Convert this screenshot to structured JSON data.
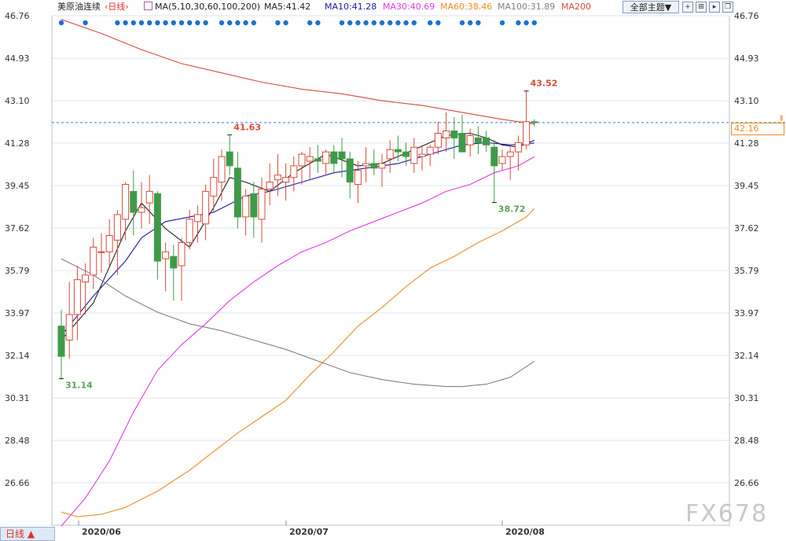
{
  "header": {
    "instrument": "美原油连续",
    "period": "‹日线›",
    "ma_icon": "ma-settings-icon",
    "ma_label": "MA(5,10,30,60,100,200)",
    "ma_values": [
      {
        "label": "MA5:41.42",
        "color": "#222222"
      },
      {
        "label": "MA10:41.28",
        "color": "#1a1aa8"
      },
      {
        "label": "MA30:40.69",
        "color": "#e43ae4"
      },
      {
        "label": "MA60:38.46",
        "color": "#f08a2a"
      },
      {
        "label": "MA100:31.89",
        "color": "#808080"
      },
      {
        "label": "MA200",
        "color": "#d84b3a"
      }
    ],
    "theme_button": "全部主题▼",
    "tool_icons": [
      "crosshair-icon",
      "zoom-in-icon",
      "play-icon",
      "restore-icon"
    ]
  },
  "bottom": {
    "period_tab": "日线 ▲",
    "watermark": "FX678"
  },
  "current_price": "42.16",
  "chart_data": {
    "type": "candlestick",
    "ylim": [
      24.83,
      46.76
    ],
    "y_ticks": [
      "46.76",
      "44.93",
      "43.10",
      "41.28",
      "39.45",
      "37.62",
      "35.79",
      "33.97",
      "32.14",
      "30.31",
      "28.48",
      "26.66"
    ],
    "x_labels": [
      "2020/06",
      "2020/07",
      "2020/08"
    ],
    "candles": [
      [
        33.4,
        34.1,
        31.1,
        32.1
      ],
      [
        32.8,
        35.3,
        32.0,
        33.9
      ],
      [
        33.9,
        36.0,
        32.8,
        35.4
      ],
      [
        35.3,
        36.1,
        33.9,
        35.6
      ],
      [
        35.6,
        37.2,
        35.0,
        36.8
      ],
      [
        36.6,
        37.4,
        35.7,
        36.6
      ],
      [
        36.6,
        38.0,
        36.0,
        37.3
      ],
      [
        37.1,
        38.4,
        35.6,
        38.2
      ],
      [
        38.0,
        39.6,
        37.1,
        39.5
      ],
      [
        39.2,
        40.1,
        37.3,
        38.3
      ],
      [
        38.3,
        39.6,
        37.6,
        38.5
      ],
      [
        38.7,
        39.9,
        37.8,
        39.2
      ],
      [
        39.1,
        39.2,
        35.4,
        36.2
      ],
      [
        36.3,
        37.0,
        34.9,
        36.6
      ],
      [
        36.4,
        36.9,
        34.5,
        35.9
      ],
      [
        36.0,
        37.2,
        34.5,
        37.0
      ],
      [
        37.0,
        38.4,
        36.7,
        38.0
      ],
      [
        37.9,
        38.6,
        37.0,
        38.2
      ],
      [
        37.8,
        39.5,
        37.1,
        39.2
      ],
      [
        39.0,
        40.6,
        38.3,
        39.8
      ],
      [
        39.6,
        41.0,
        38.8,
        40.7
      ],
      [
        40.9,
        41.6,
        39.9,
        40.3
      ],
      [
        40.2,
        40.9,
        37.6,
        38.1
      ],
      [
        38.1,
        39.3,
        37.3,
        39.0
      ],
      [
        39.1,
        39.6,
        37.2,
        38.1
      ],
      [
        38.0,
        39.8,
        37.0,
        39.3
      ],
      [
        39.3,
        40.4,
        38.6,
        39.6
      ],
      [
        39.7,
        40.8,
        39.0,
        39.9
      ],
      [
        39.6,
        40.4,
        38.8,
        39.8
      ],
      [
        39.8,
        40.7,
        39.2,
        40.3
      ],
      [
        40.3,
        40.9,
        39.5,
        40.8
      ],
      [
        40.5,
        41.1,
        39.7,
        40.7
      ],
      [
        40.6,
        41.2,
        40.0,
        40.5
      ],
      [
        40.4,
        41.0,
        39.9,
        40.9
      ],
      [
        40.9,
        41.2,
        40.0,
        40.4
      ],
      [
        40.9,
        41.5,
        39.8,
        40.6
      ],
      [
        40.6,
        40.9,
        38.9,
        39.6
      ],
      [
        39.5,
        40.5,
        38.7,
        40.1
      ],
      [
        40.3,
        41.1,
        39.6,
        40.4
      ],
      [
        40.4,
        41.0,
        39.9,
        40.2
      ],
      [
        40.2,
        40.8,
        39.4,
        40.4
      ],
      [
        40.6,
        41.4,
        40.0,
        41.0
      ],
      [
        41.0,
        41.6,
        40.5,
        40.9
      ],
      [
        40.9,
        41.3,
        40.3,
        40.7
      ],
      [
        40.4,
        41.5,
        40.0,
        41.1
      ],
      [
        40.7,
        41.2,
        40.1,
        40.8
      ],
      [
        40.8,
        41.2,
        40.3,
        41.1
      ],
      [
        41.1,
        42.2,
        40.8,
        41.7
      ],
      [
        41.5,
        42.6,
        40.9,
        41.8
      ],
      [
        41.8,
        42.4,
        40.6,
        41.5
      ],
      [
        41.7,
        42.5,
        41.0,
        40.9
      ],
      [
        41.2,
        41.9,
        40.7,
        41.6
      ],
      [
        41.5,
        42.0,
        40.8,
        41.3
      ],
      [
        41.5,
        41.8,
        40.9,
        41.2
      ],
      [
        41.1,
        41.4,
        38.7,
        40.3
      ],
      [
        40.4,
        41.0,
        40.1,
        40.7
      ],
      [
        40.7,
        41.1,
        39.7,
        40.9
      ],
      [
        40.9,
        41.6,
        40.1,
        41.3
      ],
      [
        41.2,
        43.52,
        41.0,
        42.2
      ],
      [
        42.2,
        42.3,
        42.0,
        42.16
      ]
    ],
    "moving_averages": [
      {
        "name": "MA5",
        "color": "#222222",
        "points": [
          [
            0,
            32.8
          ],
          [
            4,
            34.4
          ],
          [
            8,
            37.5
          ],
          [
            10,
            38.7
          ],
          [
            13,
            37.6
          ],
          [
            16,
            36.8
          ],
          [
            19,
            38.5
          ],
          [
            21,
            39.8
          ],
          [
            23,
            39.6
          ],
          [
            26,
            39.2
          ],
          [
            29,
            40.0
          ],
          [
            33,
            40.8
          ],
          [
            37,
            40.3
          ],
          [
            40,
            40.4
          ],
          [
            44,
            41.0
          ],
          [
            48,
            41.6
          ],
          [
            51,
            41.7
          ],
          [
            53,
            41.5
          ],
          [
            55,
            41.2
          ],
          [
            57,
            41.1
          ],
          [
            59,
            41.4
          ]
        ]
      },
      {
        "name": "MA10",
        "color": "#1a1aa8",
        "points": [
          [
            0,
            33.0
          ],
          [
            4,
            34.7
          ],
          [
            8,
            36.2
          ],
          [
            10,
            37.2
          ],
          [
            13,
            37.9
          ],
          [
            16,
            38.1
          ],
          [
            19,
            38.3
          ],
          [
            23,
            39.0
          ],
          [
            26,
            39.2
          ],
          [
            30,
            39.6
          ],
          [
            34,
            40.0
          ],
          [
            38,
            40.2
          ],
          [
            42,
            40.4
          ],
          [
            46,
            40.8
          ],
          [
            50,
            41.2
          ],
          [
            53,
            41.3
          ],
          [
            56,
            41.2
          ],
          [
            59,
            41.28
          ]
        ]
      },
      {
        "name": "MA30",
        "color": "#e43ae4",
        "points": [
          [
            0,
            24.8
          ],
          [
            3,
            26.0
          ],
          [
            6,
            27.6
          ],
          [
            9,
            29.7
          ],
          [
            12,
            31.5
          ],
          [
            15,
            32.6
          ],
          [
            18,
            33.5
          ],
          [
            21,
            34.5
          ],
          [
            24,
            35.3
          ],
          [
            27,
            36.0
          ],
          [
            30,
            36.6
          ],
          [
            33,
            37.0
          ],
          [
            36,
            37.5
          ],
          [
            39,
            37.9
          ],
          [
            42,
            38.3
          ],
          [
            45,
            38.7
          ],
          [
            48,
            39.2
          ],
          [
            51,
            39.5
          ],
          [
            54,
            40.0
          ],
          [
            57,
            40.3
          ],
          [
            59,
            40.69
          ]
        ]
      },
      {
        "name": "MA60",
        "color": "#f08a2a",
        "points": [
          [
            0,
            25.4
          ],
          [
            2,
            25.2
          ],
          [
            5,
            25.3
          ],
          [
            8,
            25.6
          ],
          [
            12,
            26.3
          ],
          [
            16,
            27.2
          ],
          [
            19,
            28.0
          ],
          [
            22,
            28.8
          ],
          [
            25,
            29.5
          ],
          [
            28,
            30.2
          ],
          [
            31,
            31.3
          ],
          [
            34,
            32.3
          ],
          [
            37,
            33.4
          ],
          [
            40,
            34.2
          ],
          [
            43,
            35.1
          ],
          [
            46,
            35.9
          ],
          [
            49,
            36.4
          ],
          [
            52,
            37.0
          ],
          [
            55,
            37.5
          ],
          [
            58,
            38.1
          ],
          [
            59,
            38.46
          ]
        ]
      },
      {
        "name": "MA100",
        "color": "#808080",
        "points": [
          [
            0,
            36.3
          ],
          [
            4,
            35.6
          ],
          [
            8,
            34.7
          ],
          [
            12,
            34.0
          ],
          [
            16,
            33.5
          ],
          [
            20,
            33.2
          ],
          [
            24,
            32.8
          ],
          [
            28,
            32.4
          ],
          [
            32,
            31.9
          ],
          [
            36,
            31.4
          ],
          [
            40,
            31.1
          ],
          [
            44,
            30.9
          ],
          [
            48,
            30.8
          ],
          [
            50,
            30.8
          ],
          [
            53,
            30.9
          ],
          [
            56,
            31.2
          ],
          [
            59,
            31.89
          ]
        ]
      },
      {
        "name": "MA200",
        "color": "#d84b3a",
        "points": [
          [
            0,
            46.6
          ],
          [
            5,
            46.0
          ],
          [
            10,
            45.3
          ],
          [
            15,
            44.7
          ],
          [
            20,
            44.3
          ],
          [
            25,
            43.9
          ],
          [
            30,
            43.6
          ],
          [
            35,
            43.4
          ],
          [
            40,
            43.1
          ],
          [
            45,
            42.9
          ],
          [
            50,
            42.6
          ],
          [
            55,
            42.3
          ],
          [
            59,
            42.1
          ]
        ]
      }
    ],
    "annotations": [
      {
        "text": "43.52",
        "index": 58,
        "value": 43.52,
        "position": "above",
        "color": "#d84b3a"
      },
      {
        "text": "41.63",
        "index": 21,
        "value": 41.63,
        "position": "above",
        "color": "#d84b3a"
      },
      {
        "text": "38.72",
        "index": 54,
        "value": 38.72,
        "position": "below",
        "color": "#5aa35a"
      },
      {
        "text": "31.14",
        "index": 0,
        "value": 31.14,
        "position": "below",
        "color": "#5aa35a"
      }
    ],
    "event_markers": [
      0,
      3,
      7,
      8,
      9,
      10,
      11,
      12,
      13,
      14,
      15,
      16,
      17,
      18,
      20,
      21,
      22,
      23,
      24,
      27,
      28,
      31,
      32,
      35,
      36,
      37,
      38,
      39,
      40,
      41,
      42,
      43,
      44,
      46,
      47,
      50,
      51,
      52,
      55,
      57,
      58,
      59
    ],
    "current_value": 42.16,
    "colors": {
      "up": "#d84b3a",
      "down": "#3f9a48",
      "grid": "#dde6ee",
      "current_line": "#2f7fd8",
      "marker": "#1e6fd8"
    },
    "grid": true
  }
}
